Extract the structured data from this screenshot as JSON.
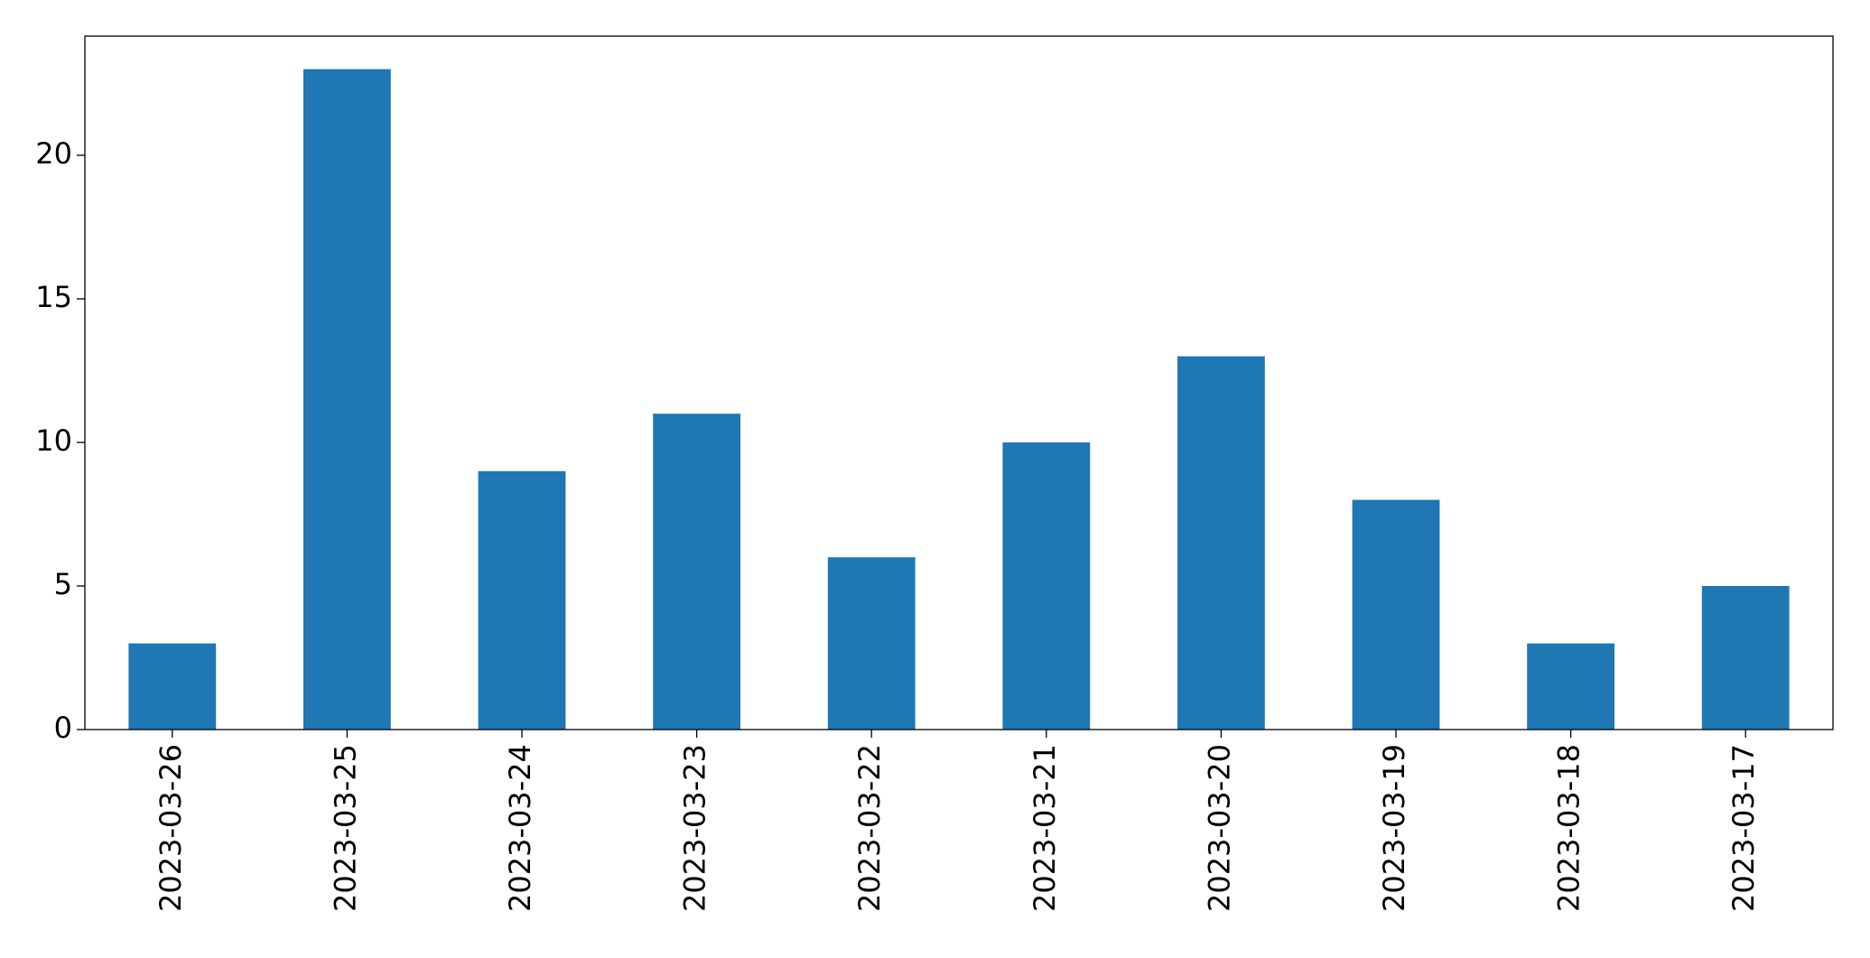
{
  "chart_data": {
    "type": "bar",
    "categories": [
      "2023-03-26",
      "2023-03-25",
      "2023-03-24",
      "2023-03-23",
      "2023-03-22",
      "2023-03-21",
      "2023-03-20",
      "2023-03-19",
      "2023-03-18",
      "2023-03-17"
    ],
    "values": [
      3,
      23,
      9,
      11,
      6,
      10,
      13,
      8,
      3,
      5
    ],
    "color": "#1f77b4",
    "ylim": [
      0,
      24.15
    ],
    "yticks": [
      0,
      5,
      10,
      15,
      20
    ],
    "grid": false
  }
}
